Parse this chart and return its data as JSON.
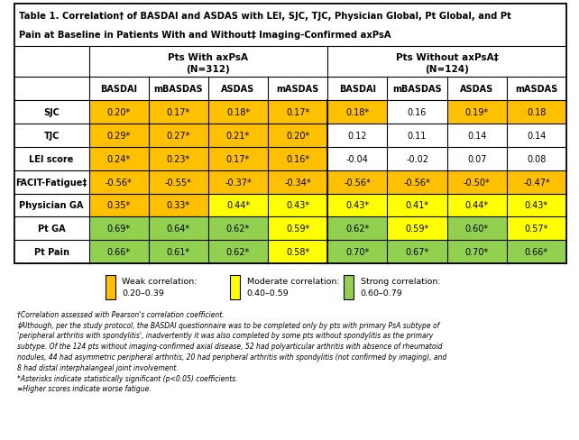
{
  "title_line1": "Table 1. Correlation† of BASDAI and ASDAS with LEI, SJC, TJC, Physician Global, Pt Global, and Pt",
  "title_line2": "Pain at Baseline in Patients With and Without‡ Imaging-Confirmed axPsA",
  "group1_label": "Pts With axPsA\n(N=312)",
  "group2_label": "Pts Without axPsA‡\n(N=124)",
  "col_headers": [
    "BASDAI",
    "mBASDAS",
    "ASDAS",
    "mASDAS",
    "BASDAI",
    "mBASDAS",
    "ASDAS",
    "mASDAS"
  ],
  "row_labels": [
    "SJC",
    "TJC",
    "LEI score",
    "FACIT-Fatigue‡",
    "Physician GA",
    "Pt GA",
    "Pt Pain"
  ],
  "data": [
    [
      "0.20*",
      "0.17*",
      "0.18*",
      "0.17*",
      "0.18*",
      "0.16",
      "0.19*",
      "0.18"
    ],
    [
      "0.29*",
      "0.27*",
      "0.21*",
      "0.20*",
      "0.12",
      "0.11",
      "0.14",
      "0.14"
    ],
    [
      "0.24*",
      "0.23*",
      "0.17*",
      "0.16*",
      "-0.04",
      "-0.02",
      "0.07",
      "0.08"
    ],
    [
      "-0.56*",
      "-0.55*",
      "-0.37*",
      "-0.34*",
      "-0.56*",
      "-0.56*",
      "-0.50*",
      "-0.47*"
    ],
    [
      "0.35*",
      "0.33*",
      "0.44*",
      "0.43*",
      "0.43*",
      "0.41*",
      "0.44*",
      "0.43*"
    ],
    [
      "0.69*",
      "0.64*",
      "0.62*",
      "0.59*",
      "0.62*",
      "0.59*",
      "0.60*",
      "0.57*"
    ],
    [
      "0.66*",
      "0.61*",
      "0.62*",
      "0.58*",
      "0.70*",
      "0.67*",
      "0.70*",
      "0.66*"
    ]
  ],
  "colors": [
    [
      "#FFC000",
      "#FFC000",
      "#FFC000",
      "#FFC000",
      "#FFC000",
      "#FFFFFF",
      "#FFC000",
      "#FFC000"
    ],
    [
      "#FFC000",
      "#FFC000",
      "#FFC000",
      "#FFC000",
      "#FFFFFF",
      "#FFFFFF",
      "#FFFFFF",
      "#FFFFFF"
    ],
    [
      "#FFC000",
      "#FFC000",
      "#FFC000",
      "#FFC000",
      "#FFFFFF",
      "#FFFFFF",
      "#FFFFFF",
      "#FFFFFF"
    ],
    [
      "#FFC000",
      "#FFC000",
      "#FFC000",
      "#FFC000",
      "#FFC000",
      "#FFC000",
      "#FFC000",
      "#FFC000"
    ],
    [
      "#FFC000",
      "#FFC000",
      "#FFFF00",
      "#FFFF00",
      "#FFFF00",
      "#FFFF00",
      "#FFFF00",
      "#FFFF00"
    ],
    [
      "#92D050",
      "#92D050",
      "#92D050",
      "#FFFF00",
      "#92D050",
      "#FFFF00",
      "#92D050",
      "#FFFF00"
    ],
    [
      "#92D050",
      "#92D050",
      "#92D050",
      "#FFFF00",
      "#92D050",
      "#92D050",
      "#92D050",
      "#92D050"
    ]
  ],
  "legend_colors": [
    "#FFC000",
    "#FFFF00",
    "#92D050"
  ],
  "legend_labels": [
    "Weak correlation:\n0.20–0.39",
    "Moderate correlation:\n0.40–0.59",
    "Strong correlation:\n0.60–0.79"
  ],
  "footnote1": "†Correlation assessed with Pearson's correlation coefficient.",
  "footnote2": "‡Although, per the study protocol, the BASDAI questionnaire was to be completed only by pts with primary PsA subtype of",
  "footnote3": "'peripheral arthritis with spondylitis', inadvertently it was also completed by some pts without spondylitis as the primary",
  "footnote4": "subtype. Of the 124 pts without imaging-confirmed axial disease, 52 had polyarticular arthritis with absence of rheumatoid",
  "footnote5": "nodules, 44 had asymmetric peripheral arthritis, 20 had peripheral arthritis with spondylitis (not confirmed by imaging), and",
  "footnote6": "8 had distal interphalangeal joint involvement.",
  "footnote7": "*Asterisks indicate statistically significant (p<0.05) coefficients.",
  "footnote8": "≡Higher scores indicate worse fatigue.",
  "border_color": "#000000",
  "bg_color": "#FFFFFF",
  "col_header_bg": "#FFFFFF"
}
